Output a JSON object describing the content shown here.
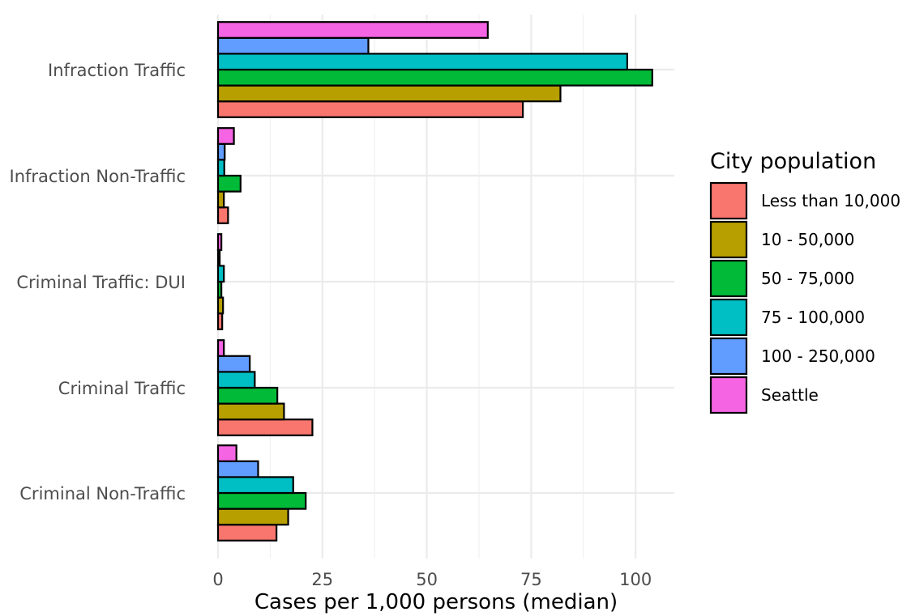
{
  "chart_data": {
    "type": "bar",
    "orientation": "horizontal",
    "xlabel": "Cases per 1,000 persons (median)",
    "ylabel": "",
    "xlim": [
      0,
      105
    ],
    "x_ticks": [
      0,
      25,
      50,
      75,
      100
    ],
    "grid": true,
    "categories": [
      "Infraction Traffic",
      "Infraction Non-Traffic",
      "Criminal Traffic: DUI",
      "Criminal Traffic",
      "Criminal Non-Traffic"
    ],
    "legend": {
      "title": "City population",
      "position": "right"
    },
    "series": [
      {
        "name": "Less than 10,000",
        "color": "#F8766D",
        "values": [
          73,
          2.4,
          1.0,
          22.6,
          14
        ]
      },
      {
        "name": "10 - 50,000",
        "color": "#B79F00",
        "values": [
          82,
          1.4,
          1.2,
          15.8,
          16.8
        ]
      },
      {
        "name": "50 - 75,000",
        "color": "#00BA38",
        "values": [
          104,
          5.4,
          0.8,
          14.2,
          21
        ]
      },
      {
        "name": "75 - 100,000",
        "color": "#00BFC4",
        "values": [
          98,
          1.5,
          1.4,
          8.8,
          18
        ]
      },
      {
        "name": "100 - 250,000",
        "color": "#619CFF",
        "values": [
          36,
          1.6,
          0.4,
          7.6,
          9.6
        ]
      },
      {
        "name": "Seattle",
        "color": "#F564E3",
        "values": [
          64.6,
          3.8,
          0.8,
          1.4,
          4.4
        ]
      }
    ]
  }
}
